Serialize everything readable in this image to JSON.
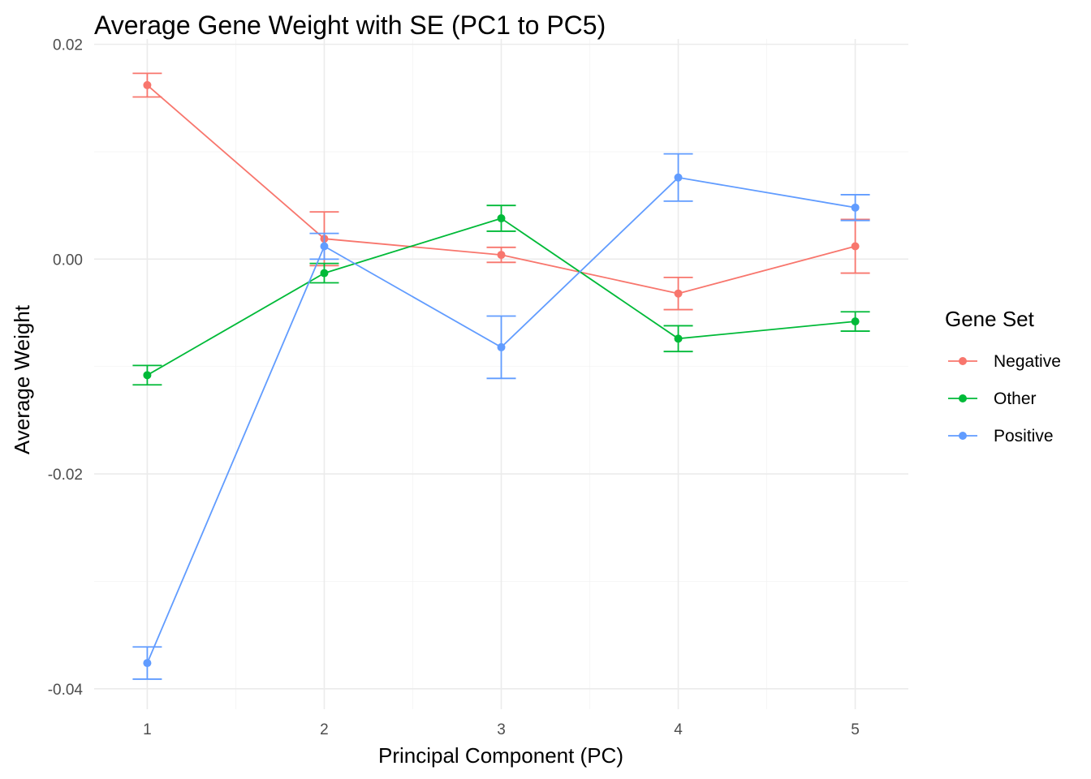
{
  "chart_data": {
    "type": "line",
    "title": "Average Gene Weight with SE (PC1 to PC5)",
    "xlabel": "Principal Component (PC)",
    "ylabel": "Average Weight",
    "x": [
      1,
      2,
      3,
      4,
      5
    ],
    "x_tick_labels": [
      "1",
      "2",
      "3",
      "4",
      "5"
    ],
    "y_ticks": [
      0.02,
      0.0,
      -0.02,
      -0.04
    ],
    "y_tick_labels": [
      "0.02",
      "0.00",
      "-0.02",
      "-0.04"
    ],
    "xlim": [
      0.7,
      5.3
    ],
    "ylim": [
      -0.0419,
      0.0205
    ],
    "grid": true,
    "error_bars": "SE",
    "legend": {
      "title": "Gene Set",
      "placement": "right"
    },
    "series": [
      {
        "name": "Negative",
        "color": "#F8766D",
        "values": [
          0.0162,
          0.0019,
          0.0004,
          -0.0032,
          0.0012
        ],
        "se": [
          0.0011,
          0.0025,
          0.0007,
          0.0015,
          0.0025
        ]
      },
      {
        "name": "Other",
        "color": "#00BA38",
        "values": [
          -0.0108,
          -0.0013,
          0.0038,
          -0.0074,
          -0.0058
        ],
        "se": [
          0.0009,
          0.0009,
          0.0012,
          0.0012,
          0.0009
        ]
      },
      {
        "name": "Positive",
        "color": "#619CFF",
        "values": [
          -0.0376,
          0.0012,
          -0.0082,
          0.0076,
          0.0048
        ],
        "se": [
          0.0015,
          0.0012,
          0.0029,
          0.0022,
          0.0012
        ]
      }
    ]
  }
}
